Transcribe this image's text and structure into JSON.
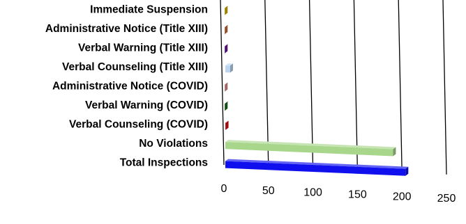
{
  "chart_data": {
    "type": "bar",
    "orientation": "horizontal",
    "style": "3d",
    "title": "",
    "xlabel": "",
    "ylabel": "",
    "xlim": [
      0,
      250
    ],
    "x_ticks": [
      "0",
      "50",
      "100",
      "150",
      "200",
      "250"
    ],
    "grid": true,
    "legend": "none",
    "categories": [
      "Immediate Suspension",
      "Administrative Notice (Title XIII)",
      "Verbal Warning (Title XIII)",
      "Verbal Counseling (Title XIII)",
      "Administrative Notice (COVID)",
      "Verbal Warning (COVID)",
      "Verbal Counseling (COVID)",
      "No Violations",
      "Total Inspections"
    ],
    "values": [
      1,
      1,
      1,
      7,
      1,
      1,
      2,
      190,
      204
    ],
    "colors": [
      "#d4b400",
      "#c8703a",
      "#6a1b9a",
      "#bcd6f2",
      "#e08f8f",
      "#1f6b1f",
      "#e01010",
      "#a8d68b",
      "#1010ee"
    ]
  }
}
